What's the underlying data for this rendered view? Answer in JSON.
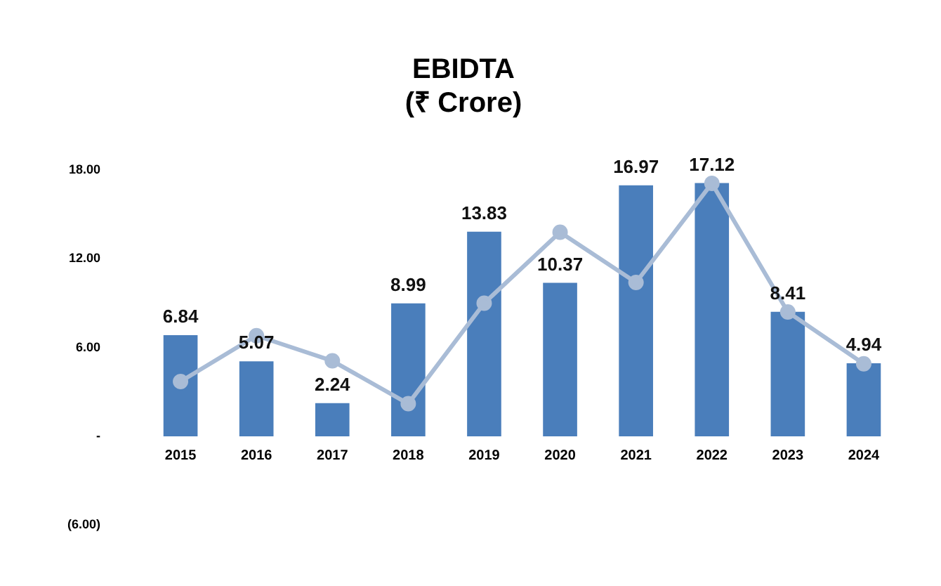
{
  "chart_data": {
    "type": "bar",
    "title": [
      "EBIDTA",
      "(₹ Crore)"
    ],
    "categories": [
      "2015",
      "2016",
      "2017",
      "2018",
      "2019",
      "2020",
      "2021",
      "2022",
      "2023",
      "2024"
    ],
    "series": [
      {
        "color": "#4a7ebb",
        "values": [
          6.84,
          5.07,
          2.24,
          8.99,
          13.83,
          10.37,
          16.97,
          17.12,
          8.41,
          4.94
        ],
        "value_labels": [
          "6.84",
          "5.07",
          "2.24",
          "8.99",
          "13.83",
          "10.37",
          "16.97",
          "17.12",
          "8.41",
          "4.94"
        ]
      },
      {
        "type": "line",
        "color": "#a9bcd6",
        "marker": "circle",
        "values": [
          3.7,
          6.8,
          5.1,
          2.2,
          9.0,
          13.8,
          10.4,
          17.1,
          8.4,
          4.9
        ]
      }
    ],
    "ylim": [
      -6,
      18
    ],
    "yticks": [
      {
        "value": -6,
        "label": "(6.00)"
      },
      {
        "value": 0,
        "label": "-"
      },
      {
        "value": 6,
        "label": "6.00"
      },
      {
        "value": 12,
        "label": "12.00"
      },
      {
        "value": 18,
        "label": "18.00"
      }
    ],
    "grid": false,
    "legend": false
  }
}
